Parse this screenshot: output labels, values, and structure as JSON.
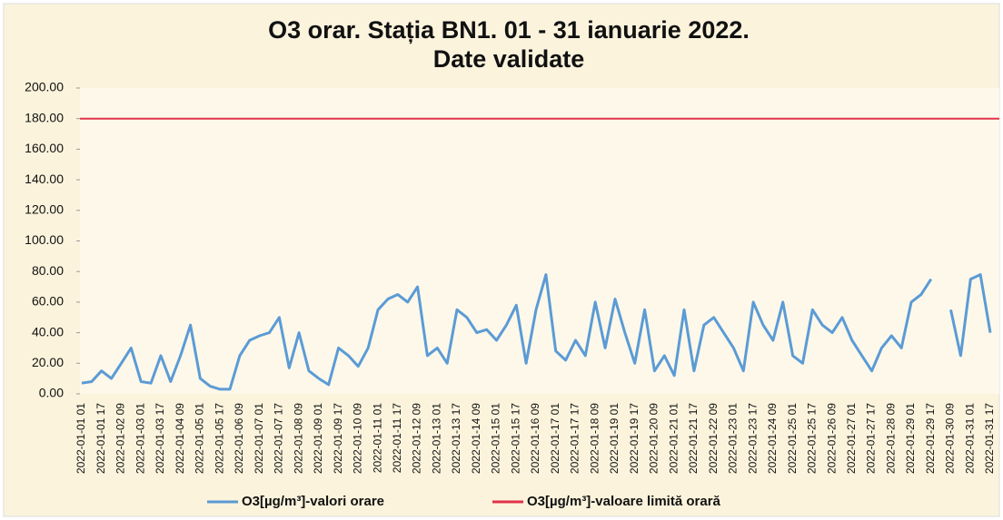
{
  "chart_data": {
    "type": "line",
    "title": [
      "O3 orar. Stația BN1. 01 - 31 ianuarie 2022.",
      "Date validate"
    ],
    "categories": [
      "2022-01-01 01",
      null,
      "2022-01-01 17",
      null,
      "2022-01-02 09",
      null,
      "2022-01-03 01",
      null,
      "2022-01-03 17",
      null,
      "2022-01-04 09",
      null,
      "2022-01-05 01",
      null,
      "2022-01-05 17",
      null,
      "2022-01-06 09",
      null,
      "2022-01-07 01",
      null,
      "2022-01-07 17",
      null,
      "2022-01-08 09",
      null,
      "2022-01-09 01",
      null,
      "2022-01-09 17",
      null,
      "2022-01-10 09",
      null,
      "2022-01-11 01",
      null,
      "2022-01-11 17",
      null,
      "2022-01-12 09",
      null,
      "2022-01-13 01",
      null,
      "2022-01-13 17",
      null,
      "2022-01-14 09",
      null,
      "2022-01-15 01",
      null,
      "2022-01-15 17",
      null,
      "2022-01-16 09",
      null,
      "2022-01-17 01",
      null,
      "2022-01-17 17",
      null,
      "2022-01-18 09",
      null,
      "2022-01-19 01",
      null,
      "2022-01-19 17",
      null,
      "2022-01-20 09",
      null,
      "2022-01-21 01",
      null,
      "2022-01-21 17",
      null,
      "2022-01-22 09",
      null,
      "2022-01-23 01",
      null,
      "2022-01-23 17",
      null,
      "2022-01-24 09",
      null,
      "2022-01-25 01",
      null,
      "2022-01-25 17",
      null,
      "2022-01-26 09",
      null,
      "2022-01-27 01",
      null,
      "2022-01-27 17",
      null,
      "2022-01-28 09",
      null,
      "2022-01-29 01",
      null,
      "2022-01-29 17",
      null,
      "2022-01-30 09",
      null,
      "2022-01-31 01",
      null,
      "2022-01-31 17"
    ],
    "series": [
      {
        "name": "O3[µg/m³]-valori orare",
        "color": "#5b9bd5",
        "values": [
          7,
          8,
          15,
          10,
          20,
          30,
          8,
          7,
          25,
          8,
          25,
          45,
          10,
          5,
          3,
          3,
          25,
          35,
          38,
          40,
          50,
          17,
          40,
          15,
          10,
          6,
          30,
          25,
          18,
          30,
          55,
          62,
          65,
          60,
          70,
          25,
          30,
          20,
          55,
          50,
          40,
          42,
          35,
          45,
          58,
          20,
          55,
          78,
          28,
          22,
          35,
          25,
          60,
          30,
          62,
          40,
          20,
          55,
          15,
          25,
          12,
          55,
          15,
          45,
          50,
          40,
          30,
          15,
          60,
          45,
          35,
          60,
          25,
          20,
          55,
          45,
          40,
          50,
          35,
          25,
          15,
          30,
          38,
          30,
          60,
          65,
          75,
          null,
          55,
          25,
          75,
          78,
          40
        ]
      }
    ],
    "limit": {
      "name": "O3[µg/m³]-valoare limită orară",
      "color": "#e0344a",
      "value": 180
    },
    "ylim": [
      0,
      200
    ],
    "yticks": [
      {
        "value": 0,
        "label": "0.00"
      },
      {
        "value": 20,
        "label": "20.00"
      },
      {
        "value": 40,
        "label": "40.00"
      },
      {
        "value": 60,
        "label": "60.00"
      },
      {
        "value": 80,
        "label": "80.00"
      },
      {
        "value": 100,
        "label": "100.00"
      },
      {
        "value": 120,
        "label": "120.00"
      },
      {
        "value": 140,
        "label": "140.00"
      },
      {
        "value": 160,
        "label": "160.00"
      },
      {
        "value": 180,
        "label": "180.00"
      },
      {
        "value": 200,
        "label": "200.00"
      }
    ]
  }
}
